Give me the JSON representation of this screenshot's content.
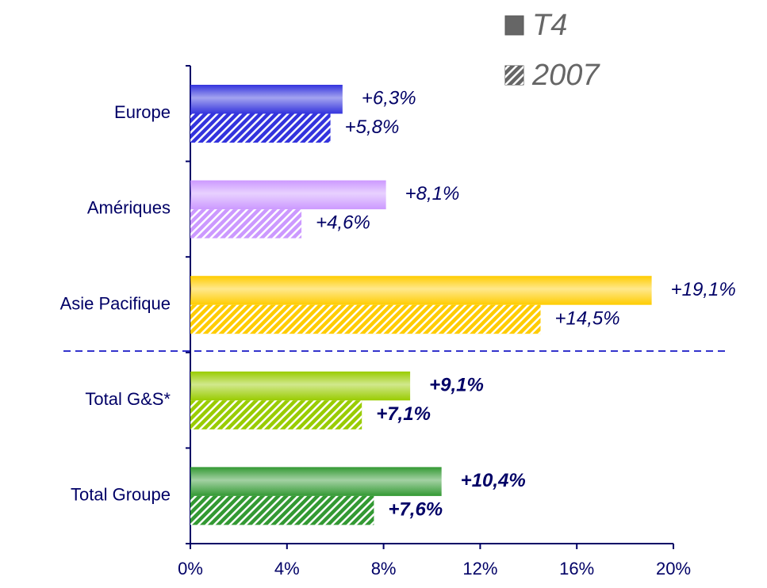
{
  "chart_data": {
    "type": "bar",
    "orientation": "horizontal",
    "categories": [
      "Europe",
      "Amériques",
      "Asie Pacifique",
      "Total G&S*",
      "Total Groupe"
    ],
    "category_colors": [
      "#3333dd",
      "#cc99ff",
      "#ffcc00",
      "#99cc00",
      "#339933"
    ],
    "bold_labels": [
      false,
      false,
      false,
      true,
      true
    ],
    "series": [
      {
        "name": "T4",
        "color": "#666666",
        "pattern": "solid",
        "values": [
          6.3,
          8.1,
          19.1,
          9.1,
          10.4
        ],
        "value_labels": [
          "+6,3%",
          "+8,1%",
          "+19,1%",
          "+9,1%",
          "+10,4%"
        ]
      },
      {
        "name": "2007",
        "color": "#666666",
        "pattern": "hatched",
        "values": [
          5.8,
          4.6,
          14.5,
          7.1,
          7.6
        ],
        "value_labels": [
          "+5,8%",
          "+4,6%",
          "+14,5%",
          "+7,1%",
          "+7,6%"
        ]
      }
    ],
    "xlim": [
      0,
      20
    ],
    "xticks": [
      {
        "value": 0,
        "label": "0%"
      },
      {
        "value": 4,
        "label": "4%"
      },
      {
        "value": 8,
        "label": "8%"
      },
      {
        "value": 12,
        "label": "12%"
      },
      {
        "value": 16,
        "label": "16%"
      },
      {
        "value": 20,
        "label": "20%"
      }
    ],
    "legend": "top-right"
  }
}
